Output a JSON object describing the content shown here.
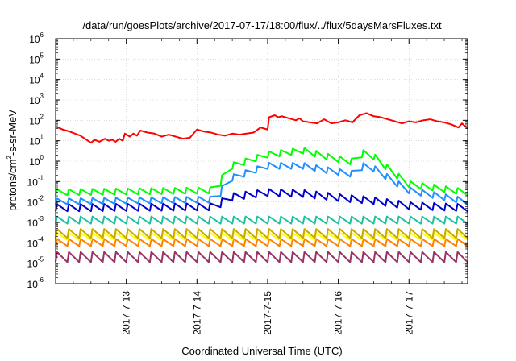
{
  "chart_data": {
    "type": "line",
    "title": "/data/run/goesPlots/archive/2017-07-17/18:00/flux/../flux/5daysMarsFluxes.txt",
    "xlabel": "Coordinated Universal Time (UTC)",
    "ylabel": "protons/cm2-s-sr-MeV",
    "ylabel_parts": [
      "protons/cm",
      "2",
      "-s-sr-MeV"
    ],
    "xlim": [
      0.0,
      5.83
    ],
    "ylim_log10": [
      -6,
      6
    ],
    "y_scale": "log",
    "grid": true,
    "x_tick_labels": [
      "2017-7-13",
      "2017-7-14",
      "2017-7-15",
      "2017-7-16",
      "2017-7-17"
    ],
    "x_tick_values": [
      1.0,
      2.0,
      3.0,
      4.0,
      5.0
    ],
    "x_units": "days since 2017-07-12 00:00 UTC",
    "y_ticks": [
      {
        "base": "10",
        "exp": "-6",
        "value": -6
      },
      {
        "base": "10",
        "exp": "-5",
        "value": -5
      },
      {
        "base": "10",
        "exp": "-4",
        "value": -4
      },
      {
        "base": "10",
        "exp": "-3",
        "value": -3
      },
      {
        "base": "10",
        "exp": "-2",
        "value": -2
      },
      {
        "base": "10",
        "exp": "-1",
        "value": -1
      },
      {
        "base": "10",
        "exp": "0",
        "value": 0
      },
      {
        "base": "10",
        "exp": "1",
        "value": 1
      },
      {
        "base": "10",
        "exp": "2",
        "value": 2
      },
      {
        "base": "10",
        "exp": "3",
        "value": 3
      },
      {
        "base": "10",
        "exp": "4",
        "value": 4
      },
      {
        "base": "10",
        "exp": "5",
        "value": 5
      },
      {
        "base": "10",
        "exp": "6",
        "value": 6
      }
    ],
    "series": [
      {
        "color": "#ff0000",
        "log10_flux": [
          [
            0.0,
            1.7
          ],
          [
            0.1,
            1.55
          ],
          [
            0.2,
            1.45
          ],
          [
            0.35,
            1.25
          ],
          [
            0.5,
            0.9
          ],
          [
            0.55,
            1.05
          ],
          [
            0.62,
            0.95
          ],
          [
            0.7,
            1.1
          ],
          [
            0.75,
            1.0
          ],
          [
            0.8,
            1.05
          ],
          [
            0.85,
            0.95
          ],
          [
            0.9,
            1.1
          ],
          [
            0.95,
            1.0
          ],
          [
            0.98,
            1.35
          ],
          [
            1.05,
            1.2
          ],
          [
            1.1,
            1.35
          ],
          [
            1.15,
            1.25
          ],
          [
            1.2,
            1.5
          ],
          [
            1.3,
            1.4
          ],
          [
            1.4,
            1.35
          ],
          [
            1.5,
            1.2
          ],
          [
            1.6,
            1.3
          ],
          [
            1.7,
            1.2
          ],
          [
            1.8,
            1.1
          ],
          [
            1.9,
            1.15
          ],
          [
            2.0,
            1.55
          ],
          [
            2.1,
            1.45
          ],
          [
            2.2,
            1.4
          ],
          [
            2.3,
            1.3
          ],
          [
            2.4,
            1.25
          ],
          [
            2.5,
            1.35
          ],
          [
            2.6,
            1.3
          ],
          [
            2.7,
            1.35
          ],
          [
            2.8,
            1.4
          ],
          [
            2.9,
            1.65
          ],
          [
            3.0,
            1.55
          ],
          [
            3.02,
            2.15
          ],
          [
            3.1,
            2.25
          ],
          [
            3.15,
            2.15
          ],
          [
            3.2,
            2.2
          ],
          [
            3.3,
            2.1
          ],
          [
            3.4,
            2.0
          ],
          [
            3.45,
            2.1
          ],
          [
            3.5,
            1.95
          ],
          [
            3.6,
            1.9
          ],
          [
            3.7,
            1.85
          ],
          [
            3.8,
            2.05
          ],
          [
            3.9,
            1.85
          ],
          [
            4.0,
            1.9
          ],
          [
            4.1,
            2.0
          ],
          [
            4.2,
            1.9
          ],
          [
            4.3,
            2.25
          ],
          [
            4.4,
            2.35
          ],
          [
            4.5,
            2.2
          ],
          [
            4.6,
            2.15
          ],
          [
            4.7,
            2.05
          ],
          [
            4.8,
            1.95
          ],
          [
            4.9,
            1.85
          ],
          [
            5.0,
            1.95
          ],
          [
            5.1,
            1.9
          ],
          [
            5.2,
            2.0
          ],
          [
            5.3,
            2.05
          ],
          [
            5.4,
            1.95
          ],
          [
            5.5,
            1.9
          ],
          [
            5.6,
            1.8
          ],
          [
            5.7,
            1.65
          ],
          [
            5.75,
            1.85
          ],
          [
            5.83,
            1.6
          ]
        ]
      },
      {
        "color": "#00ff00",
        "base_log10": -1.65,
        "amplitude": 0.3,
        "period": 0.1667,
        "start": 0.0,
        "end": 5.83,
        "envelope": [
          [
            0.0,
            -1.5
          ],
          [
            2.3,
            -1.4
          ],
          [
            2.4,
            -0.3
          ],
          [
            3.0,
            0.35
          ],
          [
            3.5,
            0.55
          ],
          [
            3.9,
            0.2
          ],
          [
            4.2,
            0.0
          ],
          [
            4.4,
            0.55
          ],
          [
            4.8,
            -0.6
          ],
          [
            5.0,
            -1.1
          ],
          [
            5.83,
            -1.5
          ]
        ]
      },
      {
        "color": "#1e90ff",
        "base_log10": -2.05,
        "amplitude": 0.3,
        "period": 0.1667,
        "start": 0.0,
        "end": 5.83,
        "envelope": [
          [
            0.0,
            -1.95
          ],
          [
            2.3,
            -1.85
          ],
          [
            2.4,
            -0.9
          ],
          [
            3.0,
            -0.2
          ],
          [
            3.5,
            -0.2
          ],
          [
            3.9,
            -0.45
          ],
          [
            4.2,
            -0.6
          ],
          [
            4.4,
            -0.1
          ],
          [
            4.8,
            -1.0
          ],
          [
            5.0,
            -1.4
          ],
          [
            5.83,
            -1.95
          ]
        ]
      },
      {
        "color": "#0000cd",
        "base_log10": -2.25,
        "amplitude": 0.35,
        "period": 0.1667,
        "start": 0.0,
        "end": 5.83,
        "envelope": [
          [
            0.0,
            -2.25
          ],
          [
            2.3,
            -2.2
          ],
          [
            2.4,
            -1.75
          ],
          [
            3.0,
            -1.5
          ],
          [
            3.5,
            -1.55
          ],
          [
            4.0,
            -1.75
          ],
          [
            4.5,
            -1.9
          ],
          [
            5.0,
            -2.15
          ],
          [
            5.83,
            -2.25
          ]
        ]
      },
      {
        "color": "#20c0a0",
        "base_log10": -2.9,
        "amplitude": 0.35,
        "period": 0.1667,
        "start": 0.0,
        "end": 5.83,
        "envelope": [
          [
            0.0,
            -2.85
          ],
          [
            5.83,
            -2.85
          ]
        ]
      },
      {
        "color": "#c8a800",
        "base_log10": -3.55,
        "amplitude": 0.45,
        "period": 0.1667,
        "start": 0.0,
        "end": 5.83,
        "envelope": [
          [
            0.0,
            -3.5
          ],
          [
            5.83,
            -3.5
          ]
        ]
      },
      {
        "color": "#ffff00",
        "base_log10": -3.7,
        "amplitude": 0.35,
        "period": 0.1667,
        "start": 0.0,
        "end": 5.83,
        "envelope": [
          [
            0.0,
            -3.65
          ],
          [
            5.83,
            -3.65
          ]
        ]
      },
      {
        "color": "#ff8000",
        "base_log10": -4.0,
        "amplitude": 0.35,
        "period": 0.1667,
        "start": 0.0,
        "end": 5.83,
        "envelope": [
          [
            0.0,
            -3.95
          ],
          [
            5.83,
            -3.95
          ]
        ]
      },
      {
        "color": "#993366",
        "base_log10": -4.7,
        "amplitude": 0.5,
        "period": 0.1667,
        "start": 0.0,
        "end": 5.83,
        "envelope": [
          [
            0.0,
            -4.65
          ],
          [
            5.83,
            -4.65
          ]
        ]
      }
    ]
  }
}
